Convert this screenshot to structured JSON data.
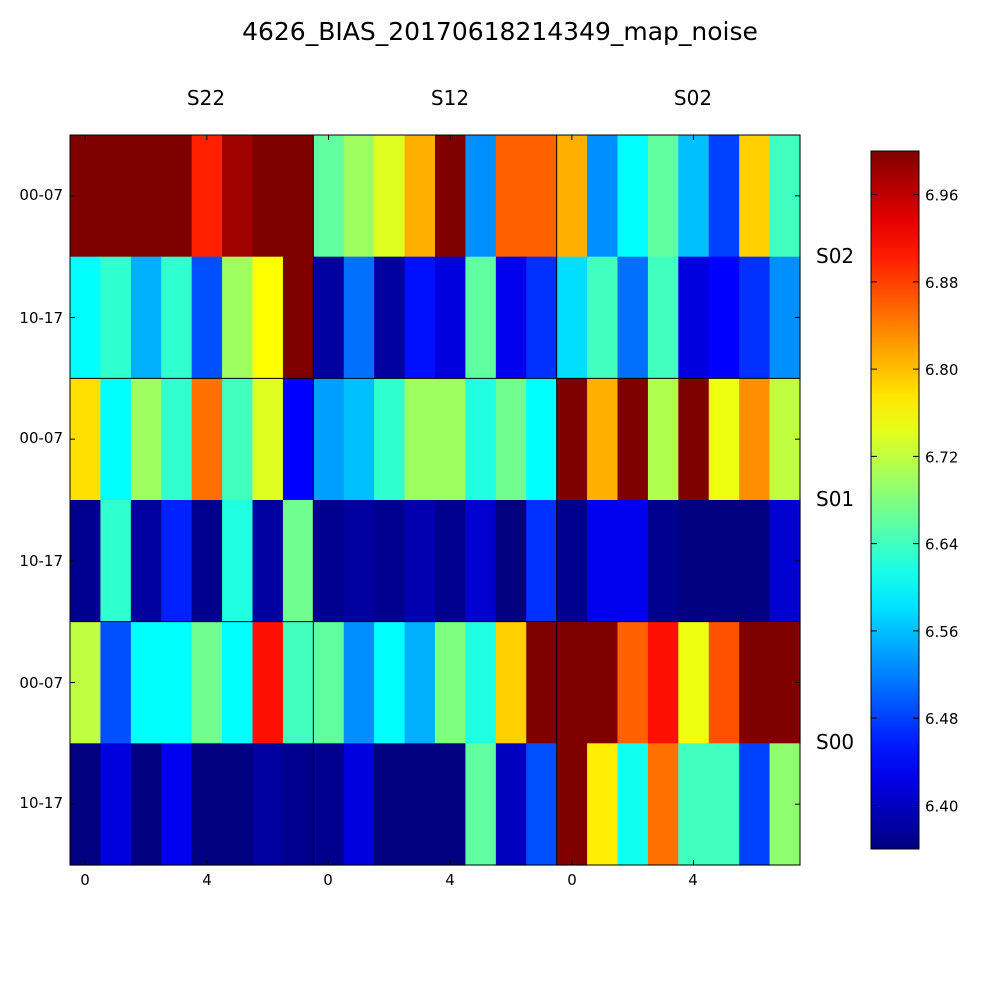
{
  "chart_data": {
    "type": "heatmap",
    "title": "4626_BIAS_20170618214349_map_noise",
    "colormap": "jet",
    "vmin": 6.36,
    "vmax": 7.0,
    "column_groups": [
      "S22",
      "S12",
      "S02"
    ],
    "row_groups": [
      "S02",
      "S01",
      "S00"
    ],
    "row_tick_labels": [
      "00-07",
      "10-17"
    ],
    "x_tick_labels": [
      "0",
      "4"
    ],
    "colorbar_ticks": [
      6.4,
      6.48,
      6.56,
      6.64,
      6.72,
      6.8,
      6.88,
      6.96
    ],
    "colorbar_tick_labels": [
      "6.40",
      "6.48",
      "6.56",
      "6.64",
      "6.72",
      "6.80",
      "6.88",
      "6.96"
    ],
    "values": [
      [
        7.0,
        7.0,
        7.0,
        7.0,
        6.9,
        6.98,
        7.0,
        7.0,
        6.66,
        6.7,
        6.74,
        6.81,
        7.0,
        6.53,
        6.86,
        6.86,
        6.81,
        6.53,
        6.6,
        6.66,
        6.56,
        6.48,
        6.79,
        6.64
      ],
      [
        6.6,
        6.63,
        6.55,
        6.63,
        6.49,
        6.7,
        6.76,
        7.0,
        6.38,
        6.51,
        6.38,
        6.45,
        6.42,
        6.66,
        6.43,
        6.47,
        6.58,
        6.64,
        6.51,
        6.64,
        6.42,
        6.44,
        6.47,
        6.53
      ],
      [
        6.78,
        6.6,
        6.7,
        6.63,
        6.85,
        6.64,
        6.74,
        6.44,
        6.54,
        6.56,
        6.63,
        6.7,
        6.7,
        6.62,
        6.67,
        6.6,
        7.0,
        6.81,
        7.0,
        6.71,
        7.0,
        6.75,
        6.83,
        6.72
      ],
      [
        6.37,
        6.63,
        6.38,
        6.46,
        6.37,
        6.62,
        6.38,
        6.67,
        6.37,
        6.38,
        6.37,
        6.39,
        6.37,
        6.41,
        6.36,
        6.47,
        6.37,
        6.43,
        6.43,
        6.37,
        6.36,
        6.36,
        6.36,
        6.41
      ],
      [
        6.72,
        6.49,
        6.6,
        6.6,
        6.67,
        6.6,
        6.91,
        6.64,
        6.66,
        6.53,
        6.6,
        6.55,
        6.68,
        6.62,
        6.79,
        7.0,
        7.0,
        7.0,
        6.86,
        6.91,
        6.75,
        6.87,
        7.0,
        7.0
      ],
      [
        6.36,
        6.42,
        6.36,
        6.43,
        6.36,
        6.36,
        6.38,
        6.37,
        6.37,
        6.42,
        6.36,
        6.36,
        6.36,
        6.66,
        6.4,
        6.49,
        7.0,
        6.77,
        6.61,
        6.85,
        6.64,
        6.64,
        6.48,
        6.69
      ]
    ]
  }
}
